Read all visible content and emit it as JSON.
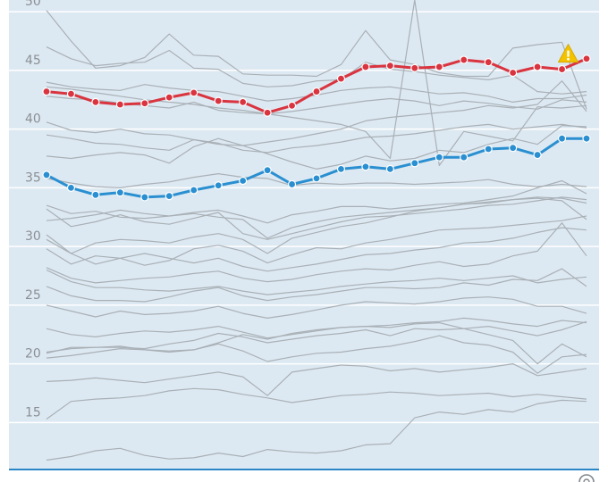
{
  "chart_data": {
    "type": "line",
    "title": "",
    "xlabel": "",
    "ylabel": "",
    "ylim": [
      11,
      51
    ],
    "yticks": [
      15,
      20,
      25,
      30,
      35,
      40,
      45,
      50
    ],
    "x": [
      1,
      2,
      3,
      4,
      5,
      6,
      7,
      8,
      9,
      10,
      11,
      12,
      13,
      14,
      15,
      16,
      17,
      18,
      19,
      20,
      21,
      22,
      23
    ],
    "grid": true,
    "legend": "none",
    "colors": {
      "background": "#dde9f2",
      "grid": "#ffffff",
      "baseline": "#2a86c4",
      "gray_series": "#a9b0b6",
      "red_series": "#d9343f",
      "blue_series": "#2a8fd1",
      "warning": "#f3c300"
    },
    "highlight_series": [
      {
        "color_key": "red_series",
        "values": [
          43.2,
          43.0,
          42.3,
          42.1,
          42.2,
          42.7,
          43.1,
          42.4,
          42.3,
          41.4,
          42.0,
          43.2,
          44.3,
          45.3,
          45.4,
          45.2,
          45.3,
          45.9,
          45.7,
          44.8,
          45.3,
          45.1,
          46.0
        ]
      },
      {
        "color_key": "blue_series",
        "values": [
          36.1,
          35.0,
          34.4,
          34.6,
          34.2,
          34.3,
          34.8,
          35.2,
          35.6,
          36.5,
          35.3,
          35.8,
          36.6,
          36.8,
          36.6,
          37.1,
          37.6,
          37.6,
          38.3,
          38.4,
          37.8,
          39.2,
          39.2
        ]
      }
    ],
    "background_series": [
      [
        50.1,
        47.5,
        45.2,
        45.4,
        46.1,
        48.1,
        46.3,
        46.2,
        44.7,
        44.6,
        44.6,
        44.5,
        45.5,
        48.4,
        45.9,
        45.5,
        44.8,
        44.5,
        44.5,
        46.9,
        47.2,
        47.4,
        41.7
      ],
      [
        47.0,
        46.0,
        45.4,
        45.6,
        45.7,
        46.7,
        45.2,
        45.1,
        43.9,
        43.6,
        43.7,
        44.1,
        44.2,
        45.7,
        45.1,
        44.9,
        44.6,
        44.4,
        44.2,
        44.6,
        43.2,
        43.0,
        43.2
      ],
      [
        44.0,
        43.6,
        43.4,
        43.3,
        43.8,
        43.5,
        43.3,
        43.2,
        42.8,
        42.4,
        42.6,
        42.9,
        43.3,
        43.5,
        43.6,
        43.3,
        43.0,
        43.1,
        42.8,
        42.3,
        42.6,
        42.6,
        42.9
      ],
      [
        42.8,
        42.6,
        42.5,
        42.2,
        42.0,
        41.8,
        42.3,
        41.6,
        41.4,
        41.3,
        41.5,
        41.8,
        42.1,
        42.4,
        42.6,
        42.4,
        42.0,
        42.4,
        42.2,
        41.9,
        41.7,
        42.5,
        42.3
      ],
      [
        40.6,
        39.9,
        39.7,
        40.0,
        39.6,
        39.5,
        39.1,
        38.7,
        38.6,
        38.9,
        39.2,
        39.6,
        40.0,
        40.7,
        41.0,
        41.2,
        41.4,
        41.6,
        42.0,
        41.8,
        42.1,
        44.1,
        41.5
      ],
      [
        39.5,
        39.2,
        38.8,
        38.7,
        38.4,
        38.2,
        39.1,
        38.8,
        38.2,
        38.0,
        38.4,
        38.6,
        38.9,
        39.3,
        39.4,
        39.6,
        39.9,
        40.2,
        40.4,
        40.0,
        40.2,
        40.4,
        40.1
      ],
      [
        37.7,
        37.5,
        37.8,
        38.0,
        37.8,
        37.1,
        38.5,
        39.2,
        38.6,
        37.9,
        37.2,
        36.6,
        37.0,
        37.7,
        37.3,
        37.5,
        38.2,
        38.0,
        38.7,
        39.2,
        38.7,
        40.3,
        40.2
      ],
      [
        35.8,
        35.4,
        35.1,
        35.0,
        35.3,
        35.5,
        35.9,
        36.2,
        35.9,
        35.8,
        35.2,
        35.4,
        35.3,
        35.4,
        35.4,
        35.3,
        35.4,
        35.5,
        35.7,
        35.3,
        35.1,
        35.3,
        35.1
      ],
      [
        33.5,
        32.8,
        33.0,
        32.5,
        32.4,
        32.6,
        32.9,
        33.1,
        32.6,
        32.0,
        32.7,
        33.0,
        33.4,
        33.4,
        33.2,
        33.4,
        33.6,
        33.7,
        34.0,
        34.3,
        35.0,
        35.6,
        34.5
      ],
      [
        33.2,
        31.7,
        32.1,
        32.7,
        32.1,
        31.9,
        32.4,
        32.9,
        31.1,
        30.6,
        31.1,
        31.6,
        32.1,
        32.5,
        32.6,
        32.8,
        33.0,
        33.2,
        33.5,
        33.6,
        33.9,
        34.2,
        34.0
      ],
      [
        32.2,
        32.4,
        32.7,
        33.1,
        32.8,
        32.6,
        32.8,
        32.5,
        32.3,
        30.7,
        31.6,
        32.1,
        32.5,
        32.7,
        32.9,
        33.1,
        33.3,
        33.6,
        33.8,
        34.0,
        34.2,
        34.1,
        33.7
      ],
      [
        30.6,
        29.4,
        30.3,
        30.6,
        30.5,
        30.3,
        30.8,
        31.1,
        30.6,
        29.4,
        30.7,
        31.2,
        31.7,
        32.0,
        32.5,
        33.0,
        33.3,
        33.6,
        33.7,
        34.0,
        34.1,
        33.9,
        32.3
      ],
      [
        29.8,
        28.5,
        29.2,
        29.0,
        28.4,
        28.8,
        29.8,
        30.1,
        29.6,
        28.6,
        29.3,
        29.9,
        29.8,
        30.3,
        30.6,
        31.0,
        31.4,
        31.5,
        31.6,
        31.8,
        32.0,
        32.2,
        32.6
      ],
      [
        31.0,
        29.4,
        28.5,
        29.0,
        29.4,
        29.0,
        28.6,
        29.0,
        28.3,
        27.9,
        28.2,
        28.5,
        28.9,
        29.3,
        29.4,
        29.7,
        29.9,
        30.3,
        30.4,
        30.7,
        31.2,
        31.6,
        31.4
      ],
      [
        28.2,
        27.3,
        26.9,
        27.1,
        27.3,
        27.4,
        27.7,
        27.9,
        27.3,
        27.0,
        27.2,
        27.6,
        27.9,
        28.1,
        28.0,
        28.4,
        28.7,
        28.3,
        28.5,
        29.2,
        29.6,
        32.0,
        29.2
      ],
      [
        28.0,
        27.0,
        26.5,
        26.5,
        26.3,
        26.2,
        26.4,
        26.6,
        26.2,
        25.9,
        26.1,
        26.3,
        26.6,
        26.8,
        27.0,
        27.1,
        27.3,
        27.1,
        27.3,
        27.5,
        26.9,
        27.2,
        27.4
      ],
      [
        26.6,
        25.8,
        25.4,
        25.4,
        25.3,
        25.7,
        26.2,
        26.5,
        25.8,
        25.4,
        25.7,
        25.9,
        26.2,
        26.5,
        26.5,
        26.4,
        26.5,
        26.9,
        26.7,
        27.2,
        27.1,
        28.1,
        26.6
      ],
      [
        25.0,
        24.5,
        24.0,
        24.5,
        24.2,
        24.3,
        24.5,
        24.9,
        24.3,
        23.9,
        24.2,
        24.6,
        25.0,
        25.3,
        25.2,
        25.1,
        25.3,
        25.6,
        25.7,
        25.5,
        24.9,
        24.9,
        24.3
      ],
      [
        23.0,
        22.5,
        22.3,
        22.6,
        22.8,
        22.7,
        22.9,
        23.2,
        22.7,
        22.2,
        22.5,
        22.8,
        23.1,
        23.2,
        23.3,
        23.5,
        23.6,
        23.9,
        23.7,
        23.4,
        23.2,
        23.7,
        23.5
      ],
      [
        21.0,
        21.3,
        21.4,
        21.4,
        21.3,
        21.7,
        22.0,
        22.6,
        22.3,
        21.8,
        22.1,
        22.4,
        22.6,
        22.9,
        22.4,
        23.0,
        22.9,
        23.0,
        23.2,
        22.8,
        22.4,
        22.9,
        23.6
      ],
      [
        20.5,
        20.7,
        21.0,
        21.3,
        21.2,
        21.0,
        21.2,
        21.8,
        22.5,
        22.1,
        22.6,
        22.9,
        23.1,
        23.2,
        23.1,
        23.4,
        23.5,
        23.0,
        22.5,
        22.0,
        20.0,
        21.7,
        20.6
      ],
      [
        20.9,
        21.4,
        21.4,
        21.5,
        21.2,
        21.1,
        21.2,
        21.7,
        21.1,
        20.2,
        20.6,
        20.9,
        21.0,
        21.3,
        21.5,
        21.9,
        22.4,
        21.8,
        21.6,
        21.0,
        19.2,
        20.6,
        20.8
      ],
      [
        18.5,
        18.6,
        18.8,
        18.6,
        18.4,
        18.7,
        19.0,
        19.3,
        18.9,
        17.3,
        19.3,
        19.6,
        19.9,
        19.8,
        19.4,
        19.6,
        19.3,
        19.5,
        19.7,
        20.0,
        19.0,
        19.3,
        19.6
      ],
      [
        15.3,
        16.8,
        17.0,
        17.1,
        17.3,
        17.7,
        17.9,
        17.8,
        17.4,
        17.1,
        16.7,
        17.0,
        17.3,
        17.4,
        17.6,
        17.5,
        17.3,
        17.4,
        17.5,
        17.2,
        17.4,
        17.2,
        17.0
      ],
      [
        11.8,
        12.1,
        12.6,
        12.8,
        12.2,
        11.9,
        12.0,
        12.4,
        12.1,
        12.7,
        12.5,
        12.4,
        12.6,
        13.1,
        13.2,
        15.4,
        15.9,
        15.7,
        16.1,
        15.9,
        16.6,
        16.9,
        16.8
      ]
    ],
    "spike_series": [
      43.6,
      43.4,
      43.1,
      42.8,
      42.5,
      42.3,
      42.1,
      41.8,
      41.6,
      41.3,
      41.0,
      40.7,
      40.4,
      39.8,
      37.5,
      51.0,
      36.9,
      39.8,
      39.4,
      39.0,
      41.9,
      41.8,
      42.0
    ],
    "warning_marker": {
      "series_index": 0,
      "x_index": 21,
      "icon": "warning-triangle-icon"
    }
  }
}
